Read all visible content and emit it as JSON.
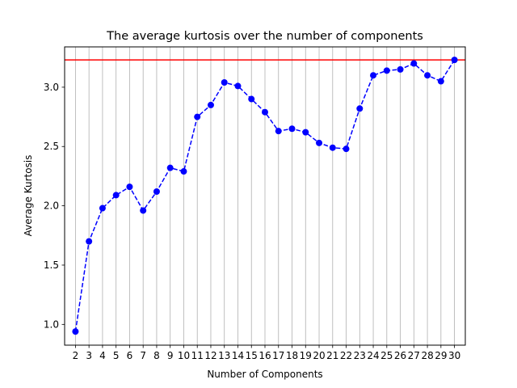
{
  "chart_data": {
    "type": "line",
    "title": "The average kurtosis over the number of components",
    "xlabel": "Number of Components",
    "ylabel": "Average Kurtosis",
    "x": [
      2,
      3,
      4,
      5,
      6,
      7,
      8,
      9,
      10,
      11,
      12,
      13,
      14,
      15,
      16,
      17,
      18,
      19,
      20,
      21,
      22,
      23,
      24,
      25,
      26,
      27,
      28,
      29,
      30
    ],
    "series": [
      {
        "values": [
          0.94,
          1.7,
          1.98,
          2.09,
          2.16,
          1.96,
          2.12,
          2.32,
          2.29,
          2.75,
          2.85,
          3.04,
          3.01,
          2.9,
          2.79,
          2.63,
          2.65,
          2.62,
          2.53,
          2.49,
          2.48,
          2.82,
          3.1,
          3.14,
          3.15,
          3.2,
          3.1,
          3.05,
          3.23
        ],
        "color": "#0000ff",
        "line_style": "dashed",
        "marker": "circle"
      }
    ],
    "hline": {
      "y": 3.23,
      "color": "#ff0000"
    },
    "xlim": [
      1.2,
      30.8
    ],
    "ylim": [
      0.825,
      3.34
    ],
    "yticks": [
      1.0,
      1.5,
      2.0,
      2.5,
      3.0
    ],
    "ytick_labels": [
      "1.0",
      "1.5",
      "2.0",
      "2.5",
      "3.0"
    ],
    "grid": "x-axis vertical lines"
  }
}
